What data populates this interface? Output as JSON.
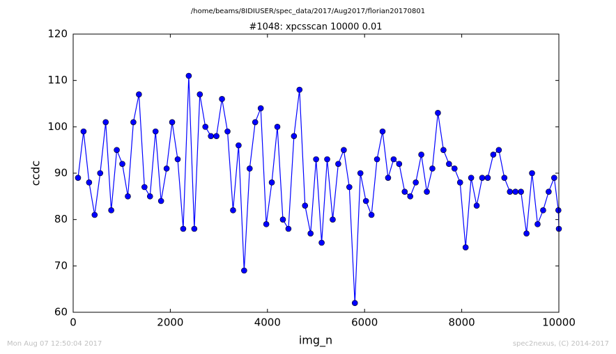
{
  "chart_data": {
    "type": "line",
    "suptitle": "/home/beams/8IDIUSER/spec_data/2017/Aug2017/florian20170801",
    "title": "#1048: xpcsscan 10000 0.01",
    "xlabel": "img_n",
    "ylabel": "ccdc",
    "footer_left": "Mon Aug 07 12:50:04 2017",
    "footer_right": "spec2nexus, (C) 2014-2017",
    "xlim": [
      0,
      10000
    ],
    "xticks": [
      0,
      2000,
      4000,
      6000,
      8000,
      10000
    ],
    "ylim": [
      60,
      120
    ],
    "yticks": [
      60,
      70,
      80,
      90,
      100,
      110,
      120
    ],
    "grid": false,
    "markers": true,
    "series": [
      {
        "color": "#0000ff",
        "x": [
          100,
          214,
          328,
          442,
          556,
          670,
          784,
          898,
          1012,
          1126,
          1240,
          1354,
          1468,
          1582,
          1696,
          1810,
          1924,
          2038,
          2152,
          2266,
          2380,
          2494,
          2608,
          2722,
          2836,
          2950,
          3064,
          3178,
          3292,
          3406,
          3520,
          3634,
          3748,
          3862,
          3976,
          4090,
          4204,
          4318,
          4432,
          4546,
          4660,
          4774,
          4888,
          5002,
          5116,
          5230,
          5344,
          5458,
          5572,
          5686,
          5800,
          5914,
          6028,
          6142,
          6256,
          6370,
          6484,
          6598,
          6712,
          6826,
          6940,
          7054,
          7168,
          7282,
          7396,
          7510,
          7624,
          7738,
          7852,
          7966,
          8080,
          8194,
          8308,
          8422,
          8536,
          8650,
          8764,
          8878,
          8992,
          9106,
          9220,
          9334,
          9448,
          9562,
          9676,
          9790,
          9904,
          9990,
          10000
        ],
        "values": [
          89,
          99,
          88,
          81,
          90,
          101,
          82,
          95,
          92,
          85,
          101,
          107,
          87,
          85,
          99,
          84,
          91,
          101,
          93,
          78,
          111,
          78,
          107,
          100,
          98,
          98,
          106,
          99,
          82,
          96,
          69,
          91,
          101,
          104,
          79,
          88,
          100,
          80,
          78,
          98,
          108,
          83,
          77,
          93,
          75,
          93,
          80,
          92,
          95,
          87,
          62,
          90,
          84,
          81,
          93,
          99,
          89,
          93,
          92,
          86,
          85,
          88,
          94,
          86,
          91,
          103,
          95,
          92,
          91,
          88,
          74,
          89,
          83,
          89,
          89,
          94,
          95,
          89,
          86,
          86,
          86,
          77,
          90,
          79,
          82,
          86,
          89,
          82,
          78
        ]
      }
    ]
  }
}
